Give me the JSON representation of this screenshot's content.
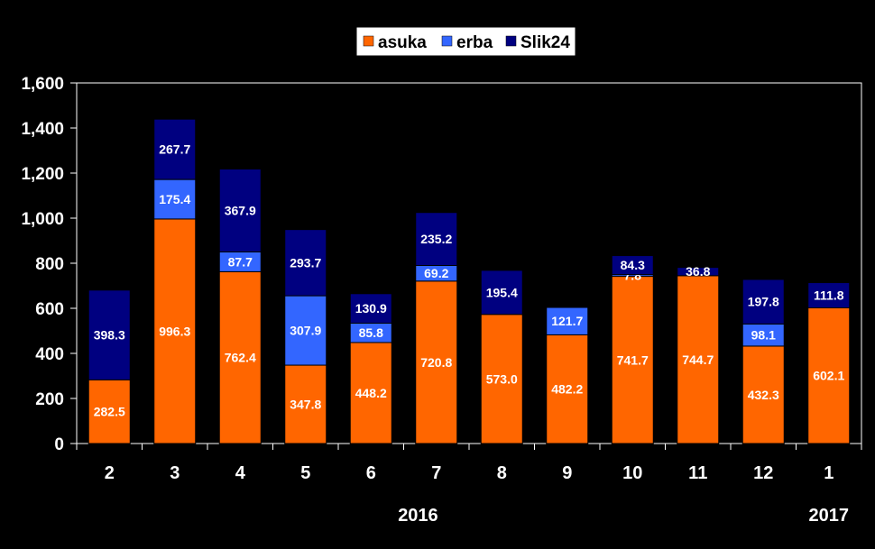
{
  "chart_data": {
    "type": "bar",
    "stacked": true,
    "categories": [
      "2",
      "3",
      "4",
      "5",
      "6",
      "7",
      "8",
      "9",
      "10",
      "11",
      "12",
      "1"
    ],
    "series": [
      {
        "name": "asuka",
        "color": "#FF6600",
        "values": [
          282.5,
          996.3,
          762.4,
          347.8,
          448.2,
          720.8,
          573.0,
          482.2,
          741.7,
          744.7,
          432.3,
          602.1
        ],
        "labels": [
          "282.5",
          "996.3",
          "762.4",
          "347.8",
          "448.2",
          "720.8",
          "573.0",
          "482.2",
          "741.7",
          "744.7",
          "432.3",
          "602.1"
        ]
      },
      {
        "name": "erba",
        "color": "#3366FF",
        "values": [
          0,
          175.4,
          87.7,
          307.9,
          85.8,
          69.2,
          0,
          121.7,
          7.8,
          0,
          98.1,
          0
        ],
        "labels": [
          "",
          "175.4",
          "87.7",
          "307.9",
          "85.8",
          "69.2",
          "",
          "121.7",
          "7.8",
          "",
          "98.1",
          ""
        ]
      },
      {
        "name": "Slik24",
        "color": "#000080",
        "values": [
          398.3,
          267.7,
          367.9,
          293.7,
          130.9,
          235.2,
          195.4,
          0,
          84.3,
          36.8,
          197.8,
          111.8
        ],
        "labels": [
          "398.3",
          "267.7",
          "367.9",
          "293.7",
          "130.9",
          "235.2",
          "195.4",
          "",
          "84.3",
          "36.8",
          "197.8",
          "111.8"
        ]
      }
    ],
    "year_labels": [
      {
        "category_index": 5,
        "text": "2016"
      },
      {
        "category_index": 11,
        "text": "2017"
      }
    ],
    "ylim": [
      0,
      1600
    ],
    "yticks": [
      0,
      200,
      400,
      600,
      800,
      1000,
      1200,
      1400,
      1600
    ],
    "ytick_labels": [
      "0",
      "200",
      "400",
      "600",
      "800",
      "1,000",
      "1,200",
      "1,400",
      "1,600"
    ],
    "grid": false,
    "legend_position": "top-center",
    "background": "#000000",
    "text_color": "#FFFFFF"
  }
}
